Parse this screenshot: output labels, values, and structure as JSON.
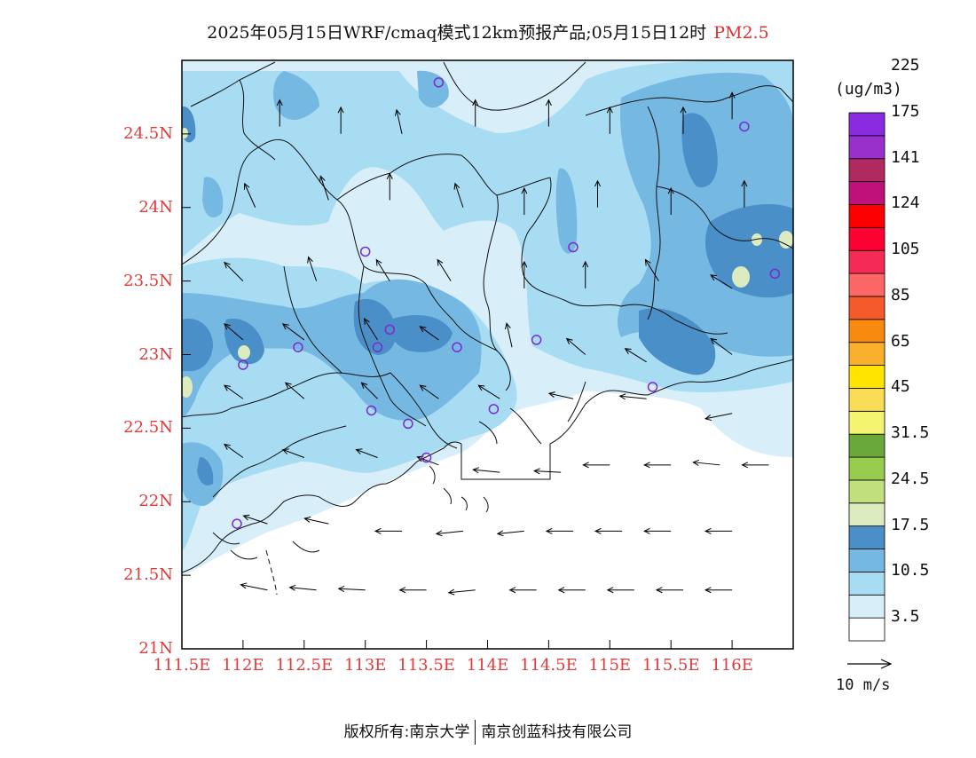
{
  "title": {
    "main": "2025年05月15日WRF/cmaq模式12km预报产品;05月15日12时",
    "variable": "PM2.5"
  },
  "map": {
    "lat_ticks": [
      "21N",
      "21.5N",
      "22N",
      "22.5N",
      "23N",
      "23.5N",
      "24N",
      "24.5N"
    ],
    "lon_ticks": [
      "111.5E",
      "112E",
      "112.5E",
      "113E",
      "113.5E",
      "114E",
      "114.5E",
      "115E",
      "115.5E",
      "116E"
    ],
    "lon_range": [
      111.5,
      116.5
    ],
    "lat_range": [
      21,
      25
    ],
    "station_marker_color": "#7a2ad0",
    "stations": [
      [
        113.6,
        24.85
      ],
      [
        116.1,
        24.55
      ],
      [
        114.7,
        23.73
      ],
      [
        113.0,
        23.7
      ],
      [
        116.35,
        23.55
      ],
      [
        112.45,
        23.05
      ],
      [
        113.1,
        23.05
      ],
      [
        113.2,
        23.17
      ],
      [
        113.75,
        23.05
      ],
      [
        114.4,
        23.1
      ],
      [
        112.0,
        22.93
      ],
      [
        113.05,
        22.62
      ],
      [
        113.35,
        22.53
      ],
      [
        114.05,
        22.63
      ],
      [
        115.35,
        22.78
      ],
      [
        113.5,
        22.3
      ],
      [
        111.95,
        21.85
      ]
    ],
    "wind_arrows": [
      [
        112.3,
        24.55,
        0,
        1
      ],
      [
        112.8,
        24.5,
        0,
        1
      ],
      [
        113.3,
        24.5,
        -0.2,
        0.9
      ],
      [
        113.9,
        24.55,
        0,
        1
      ],
      [
        114.5,
        24.55,
        0,
        1
      ],
      [
        115.0,
        24.5,
        0,
        1
      ],
      [
        115.6,
        24.5,
        0,
        1
      ],
      [
        116.0,
        24.6,
        0,
        1
      ],
      [
        112.1,
        24.0,
        -0.4,
        0.9
      ],
      [
        112.7,
        24.05,
        -0.3,
        0.9
      ],
      [
        113.2,
        24.05,
        0,
        1
      ],
      [
        113.8,
        24.0,
        -0.3,
        0.9
      ],
      [
        114.3,
        23.95,
        0,
        1
      ],
      [
        114.9,
        24.0,
        0,
        1
      ],
      [
        115.5,
        23.95,
        0,
        1
      ],
      [
        116.1,
        24.0,
        0,
        1
      ],
      [
        112.0,
        23.5,
        -0.7,
        0.7
      ],
      [
        112.6,
        23.5,
        -0.3,
        0.9
      ],
      [
        113.2,
        23.5,
        -0.5,
        0.8
      ],
      [
        113.7,
        23.5,
        -0.5,
        0.8
      ],
      [
        114.3,
        23.45,
        0,
        1
      ],
      [
        114.8,
        23.45,
        0,
        1
      ],
      [
        115.4,
        23.5,
        -0.5,
        0.8
      ],
      [
        116.0,
        23.45,
        -0.8,
        0.5
      ],
      [
        112.0,
        23.1,
        -0.7,
        0.6
      ],
      [
        112.5,
        23.1,
        -0.8,
        0.6
      ],
      [
        113.1,
        23.1,
        -0.5,
        0.8
      ],
      [
        113.6,
        23.1,
        -0.7,
        0.5
      ],
      [
        114.2,
        23.05,
        -0.2,
        0.9
      ],
      [
        114.8,
        23.0,
        -0.7,
        0.6
      ],
      [
        115.3,
        22.95,
        -0.8,
        0.5
      ],
      [
        116.0,
        23.0,
        -0.8,
        0.6
      ],
      [
        112.0,
        22.7,
        -0.7,
        0.5
      ],
      [
        112.5,
        22.7,
        -0.7,
        0.6
      ],
      [
        113.1,
        22.7,
        -0.6,
        0.6
      ],
      [
        113.6,
        22.7,
        -0.7,
        0.5
      ],
      [
        114.1,
        22.7,
        -0.8,
        0.5
      ],
      [
        114.7,
        22.7,
        -0.9,
        0.2
      ],
      [
        115.3,
        22.7,
        -1,
        0.1
      ],
      [
        116.0,
        22.6,
        -1,
        -0.2
      ],
      [
        112.0,
        22.3,
        -0.7,
        0.5
      ],
      [
        112.5,
        22.3,
        -0.8,
        0.3
      ],
      [
        113.1,
        22.3,
        -0.8,
        0.3
      ],
      [
        113.6,
        22.25,
        -0.8,
        0.3
      ],
      [
        114.1,
        22.2,
        -1,
        0.1
      ],
      [
        114.6,
        22.2,
        -1,
        0.05
      ],
      [
        115.0,
        22.25,
        -1,
        0
      ],
      [
        115.5,
        22.25,
        -1,
        0
      ],
      [
        115.9,
        22.25,
        -1,
        0.1
      ],
      [
        116.3,
        22.25,
        -1,
        0
      ],
      [
        112.2,
        21.85,
        -0.9,
        0.3
      ],
      [
        112.7,
        21.85,
        -0.9,
        0.2
      ],
      [
        113.3,
        21.8,
        -1,
        0
      ],
      [
        113.8,
        21.8,
        -1,
        -0.1
      ],
      [
        114.3,
        21.8,
        -1,
        -0.1
      ],
      [
        114.7,
        21.8,
        -1,
        0
      ],
      [
        115.1,
        21.8,
        -1,
        0
      ],
      [
        115.5,
        21.8,
        -1,
        0
      ],
      [
        116.0,
        21.8,
        -1,
        0
      ],
      [
        112.2,
        21.4,
        -1,
        0.2
      ],
      [
        112.6,
        21.4,
        -1,
        0.1
      ],
      [
        113.0,
        21.4,
        -1,
        0.05
      ],
      [
        113.5,
        21.4,
        -1,
        0
      ],
      [
        113.9,
        21.4,
        -1,
        -0.1
      ],
      [
        114.4,
        21.4,
        -1,
        0
      ],
      [
        114.8,
        21.4,
        -1,
        0
      ],
      [
        115.2,
        21.4,
        -1,
        0
      ],
      [
        115.6,
        21.4,
        -1,
        0
      ],
      [
        116.0,
        21.4,
        -1,
        0
      ]
    ]
  },
  "colorbar": {
    "unit": "(ug/m3)",
    "colors": [
      "#ffffff",
      "#d8effa",
      "#a8dcf3",
      "#75b8e2",
      "#4a8fc7",
      "#dcecc0",
      "#c2df7e",
      "#98cc4e",
      "#6aa83b",
      "#f4f471",
      "#f8dc56",
      "#ffe500",
      "#f9b02c",
      "#f98a10",
      "#f45a2c",
      "#fd6667",
      "#f52a55",
      "#ff0033",
      "#ff0000",
      "#c0107a",
      "#b02a60",
      "#9930cc",
      "#8a2be2"
    ],
    "labels": [
      "3.5",
      "10.5",
      "17.5",
      "24.5",
      "31.5",
      "45",
      "65",
      "85",
      "105",
      "124",
      "141",
      "175",
      "225"
    ]
  },
  "wind_scale": {
    "label": "10 m/s"
  },
  "footer": {
    "left": "版权所有:南京大学",
    "right": "南京创蓝科技有限公司"
  }
}
